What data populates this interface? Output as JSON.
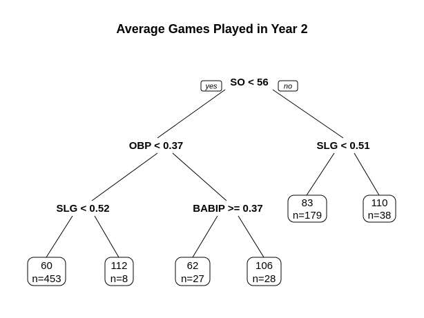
{
  "title": "Average Games Played in Year 2",
  "branch_tags": {
    "yes": "yes",
    "no": "no"
  },
  "nodes": {
    "root": {
      "label": "SO < 56"
    },
    "obp": {
      "label": "OBP < 0.37"
    },
    "slg_right": {
      "label": "SLG < 0.51"
    },
    "slg_left": {
      "label": "SLG < 0.52"
    },
    "babip": {
      "label": "BABIP >= 0.37"
    }
  },
  "leaves": {
    "leaf_60": {
      "value": "60",
      "n": "n=453"
    },
    "leaf_112": {
      "value": "112",
      "n": "n=8"
    },
    "leaf_62": {
      "value": "62",
      "n": "n=27"
    },
    "leaf_106": {
      "value": "106",
      "n": "n=28"
    },
    "leaf_83": {
      "value": "83",
      "n": "n=179"
    },
    "leaf_110": {
      "value": "110",
      "n": "n=38"
    }
  }
}
